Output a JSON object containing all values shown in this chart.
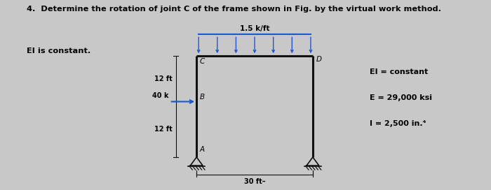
{
  "bg_outer": "#c8c8c8",
  "bg_diagram": "#c8c8d8",
  "title_line1": "4.  Determine the rotation of joint C of the frame shown in Fig. by the virtual work method.",
  "title_line2": "EI is constant.",
  "frame_color": "#2222cc",
  "struct_color": "#111111",
  "load_color": "#2255cc",
  "prop_text": [
    "EI = constant",
    "E = 29,000 ksi",
    "I = 2,500 in.⁴"
  ],
  "load_label": "1.5 k/ft",
  "A": [
    3.2,
    1.5
  ],
  "B": [
    3.2,
    4.8
  ],
  "C": [
    3.2,
    7.5
  ],
  "D": [
    8.8,
    7.5
  ],
  "Rbase": [
    8.8,
    1.5
  ]
}
